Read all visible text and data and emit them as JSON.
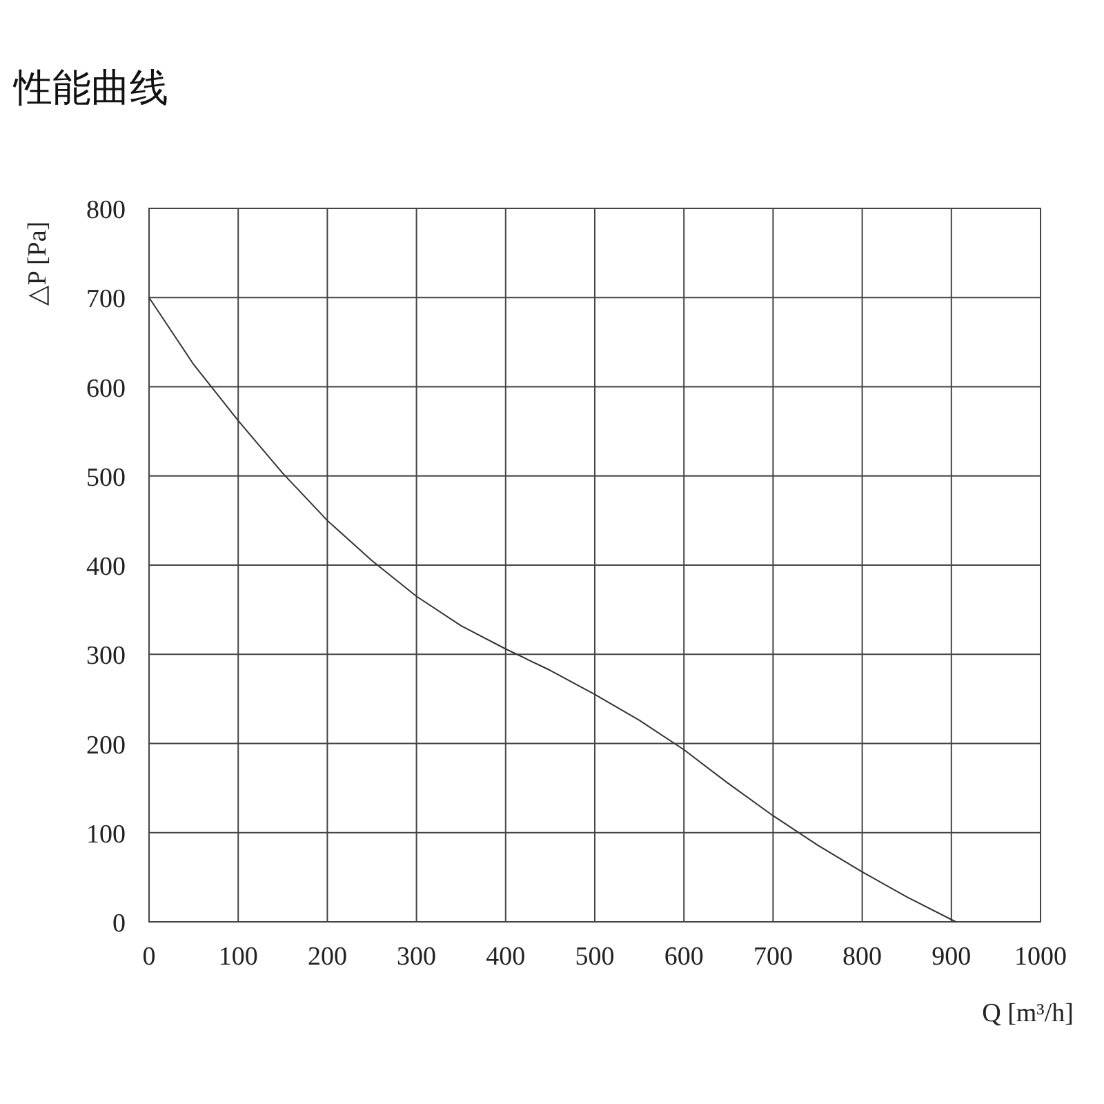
{
  "chart_data": {
    "type": "line",
    "title": "性能曲线",
    "xlabel": "Q [m³/h]",
    "ylabel": "△P [Pa]",
    "x": [
      0,
      50,
      100,
      150,
      200,
      250,
      300,
      350,
      400,
      450,
      500,
      550,
      600,
      650,
      700,
      750,
      800,
      850,
      905
    ],
    "series": [
      {
        "color": "#333333",
        "values": [
          700,
          625,
          562,
          503,
          450,
          405,
          365,
          332,
          306,
          282,
          255,
          226,
          193,
          155,
          119,
          86,
          56,
          28,
          0
        ]
      }
    ],
    "xlim": [
      0,
      1000
    ],
    "ylim": [
      0,
      800
    ],
    "xticks": [
      0,
      100,
      200,
      300,
      400,
      500,
      600,
      700,
      800,
      900,
      1000
    ],
    "yticks": [
      0,
      100,
      200,
      300,
      400,
      500,
      600,
      700,
      800
    ],
    "grid": true,
    "marker": "none",
    "line_style": "solid"
  }
}
